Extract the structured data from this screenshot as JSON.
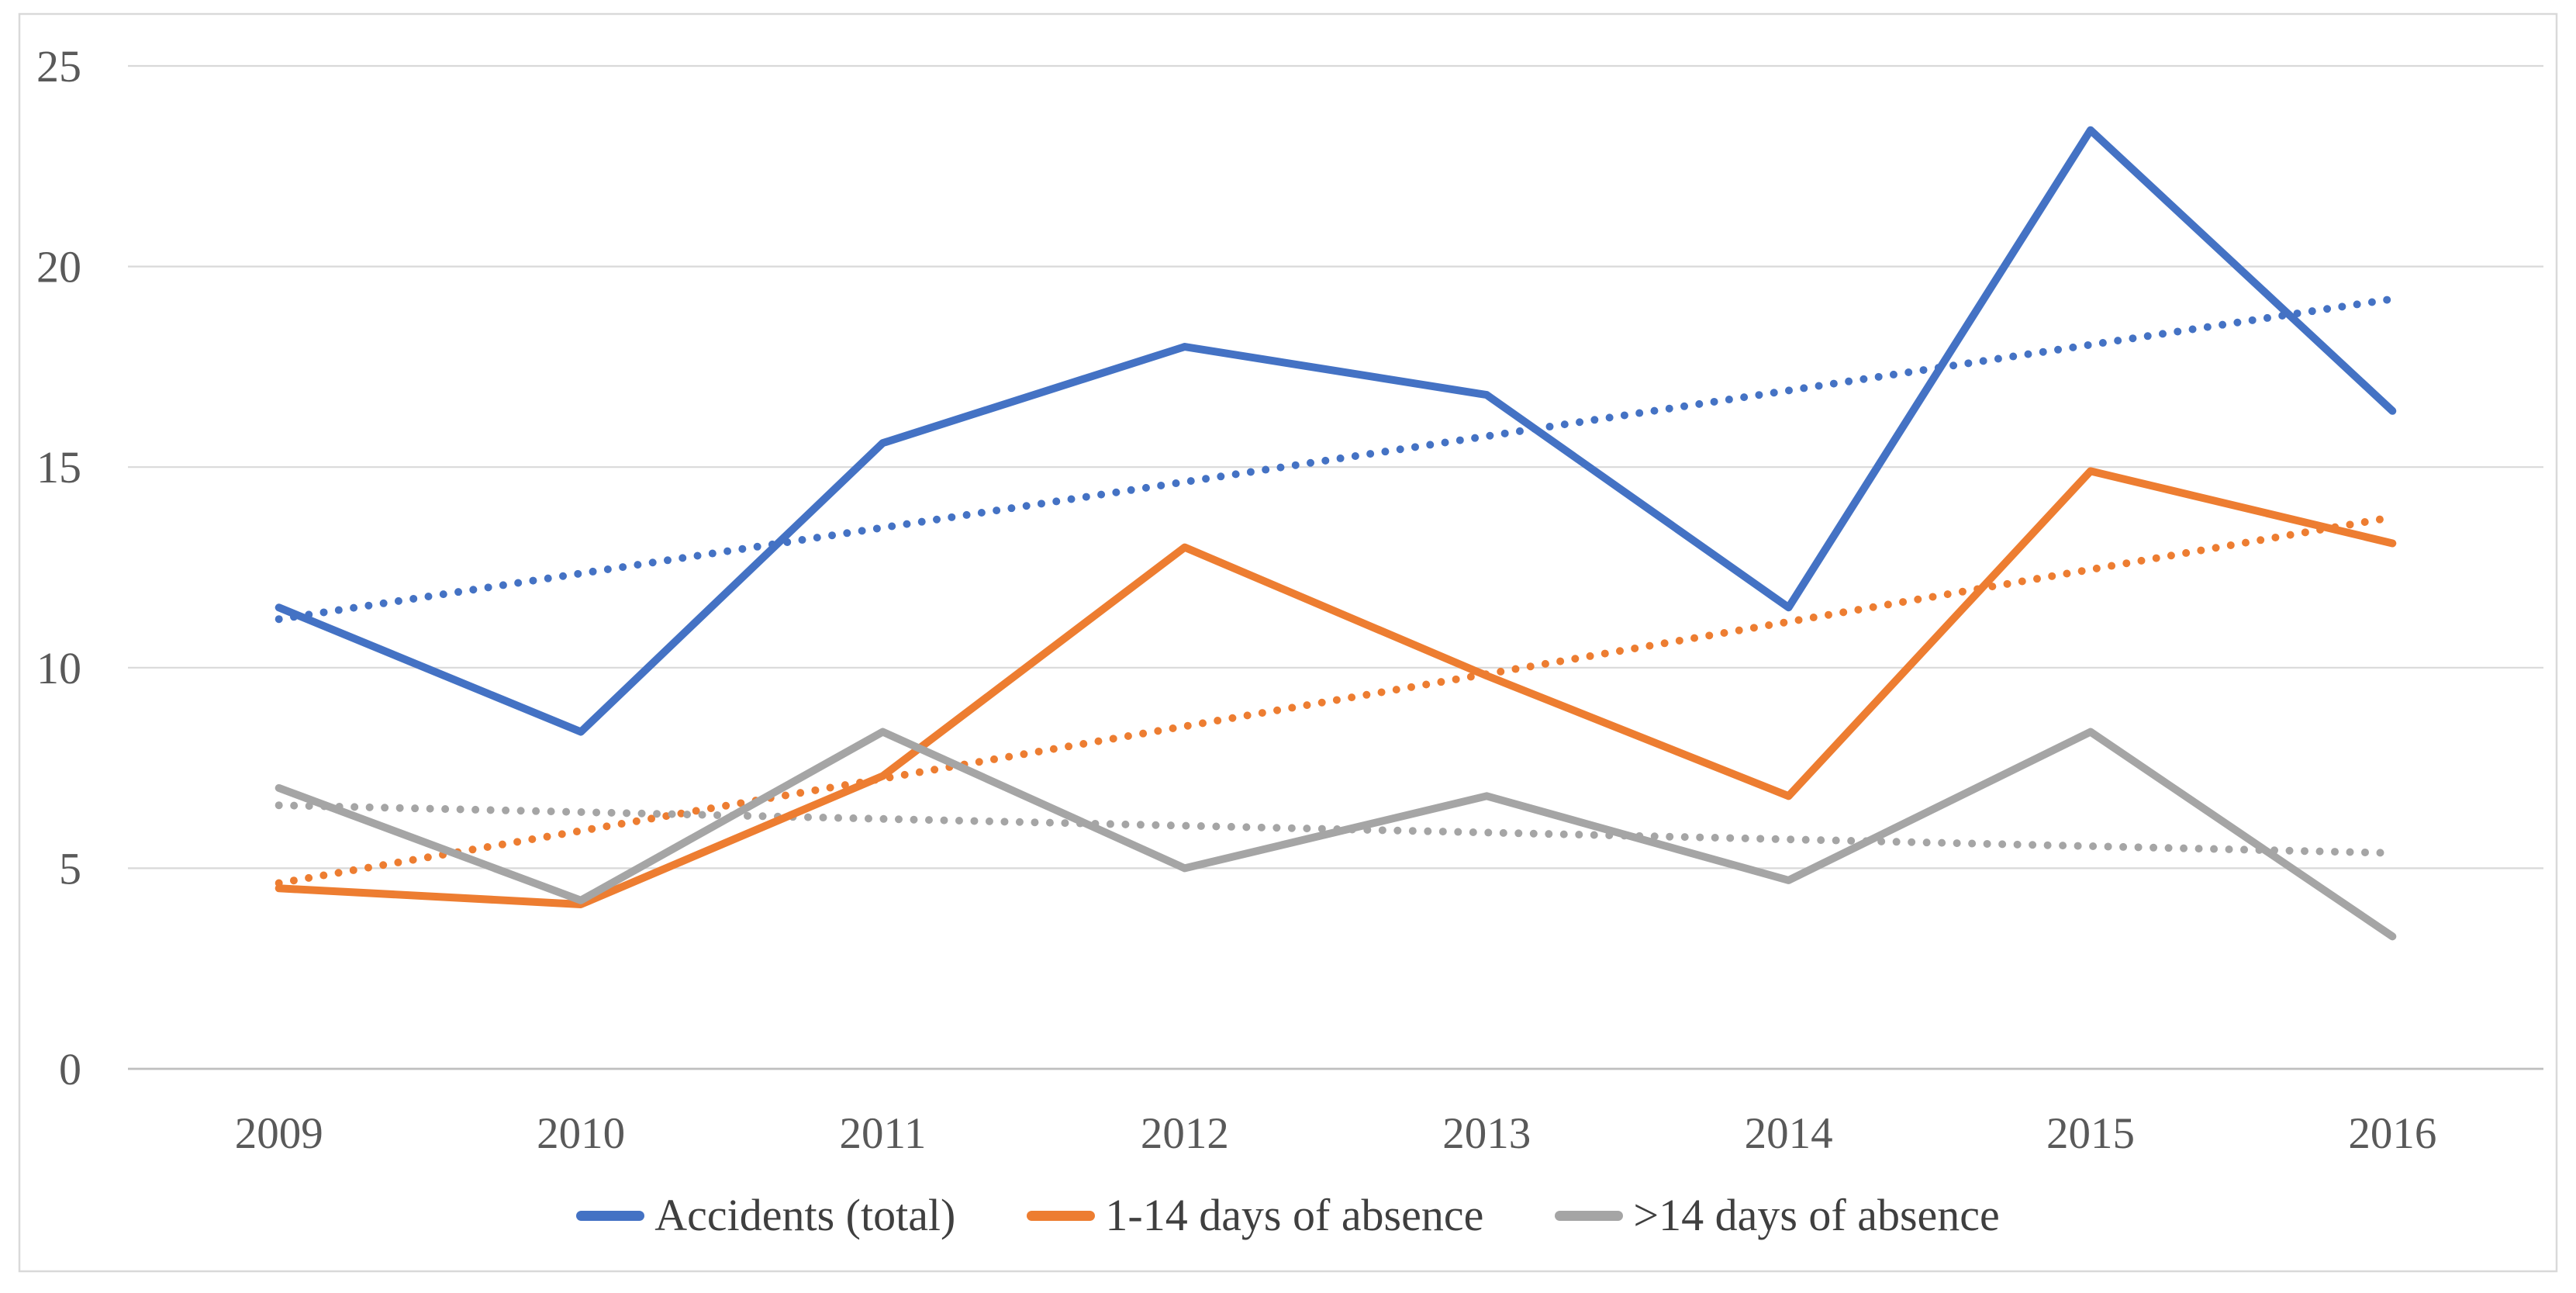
{
  "chart_data": {
    "type": "line",
    "title": "",
    "categories": [
      "2009",
      "2010",
      "2011",
      "2012",
      "2013",
      "2014",
      "2015",
      "2016"
    ],
    "series": [
      {
        "name": "Accidents (total)",
        "color": "#4472C4",
        "values": [
          11.5,
          8.4,
          15.6,
          18.0,
          16.8,
          11.5,
          23.4,
          16.4
        ],
        "trendline": {
          "style": "dotted",
          "start": 11.21,
          "end": 19.19
        }
      },
      {
        "name": "1-14 days of absence",
        "color": "#ED7D31",
        "values": [
          4.5,
          4.1,
          7.3,
          13.0,
          9.8,
          6.8,
          14.9,
          13.1
        ],
        "trendline": {
          "style": "dotted",
          "start": 4.63,
          "end": 13.75
        }
      },
      {
        "name": ">14 days of absence",
        "color": "#A5A5A5",
        "values": [
          7.0,
          4.2,
          8.4,
          5.0,
          6.8,
          4.7,
          8.4,
          3.3
        ],
        "trendline": {
          "style": "dotted",
          "start": 6.57,
          "end": 5.38
        }
      }
    ],
    "xlabel": "",
    "ylabel": "",
    "ylim": [
      0,
      25
    ],
    "yticks": [
      0,
      5,
      10,
      15,
      20,
      25
    ],
    "grid": true,
    "legend_position": "bottom",
    "colors": {
      "gridline": "#D9D9D9",
      "axis_line": "#BFBFBF",
      "tick_label": "#595959",
      "legend_text": "#3F3F3F",
      "frame_border": "#D9D9D9",
      "background": "#FFFFFF"
    }
  }
}
